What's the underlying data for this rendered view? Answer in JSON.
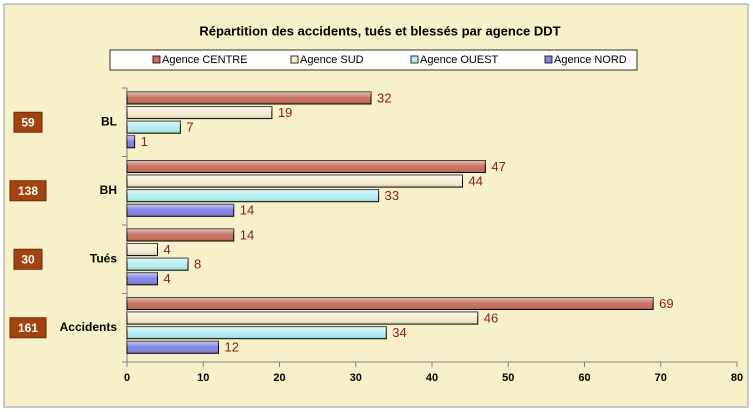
{
  "chart_data": {
    "type": "barh",
    "title": "Répartition des accidents, tués et blessés par agence DDT",
    "categories": [
      "BL",
      "BH",
      "Tués",
      "Accidents"
    ],
    "totals": [
      59,
      138,
      30,
      161
    ],
    "series": [
      {
        "name": "Agence CENTRE",
        "color": "#c8705e",
        "values": [
          32,
          47,
          14,
          69
        ]
      },
      {
        "name": "Agence SUD",
        "color": "#f6eed2",
        "values": [
          19,
          44,
          4,
          46
        ]
      },
      {
        "name": "Agence OUEST",
        "color": "#b4f0f0",
        "values": [
          7,
          33,
          8,
          34
        ]
      },
      {
        "name": "Agence NORD",
        "color": "#8484e4",
        "values": [
          1,
          14,
          4,
          12
        ]
      }
    ],
    "xlim": [
      0,
      80
    ],
    "xticks": [
      0,
      10,
      20,
      30,
      40,
      50,
      60,
      70,
      80
    ],
    "legend": "top"
  }
}
